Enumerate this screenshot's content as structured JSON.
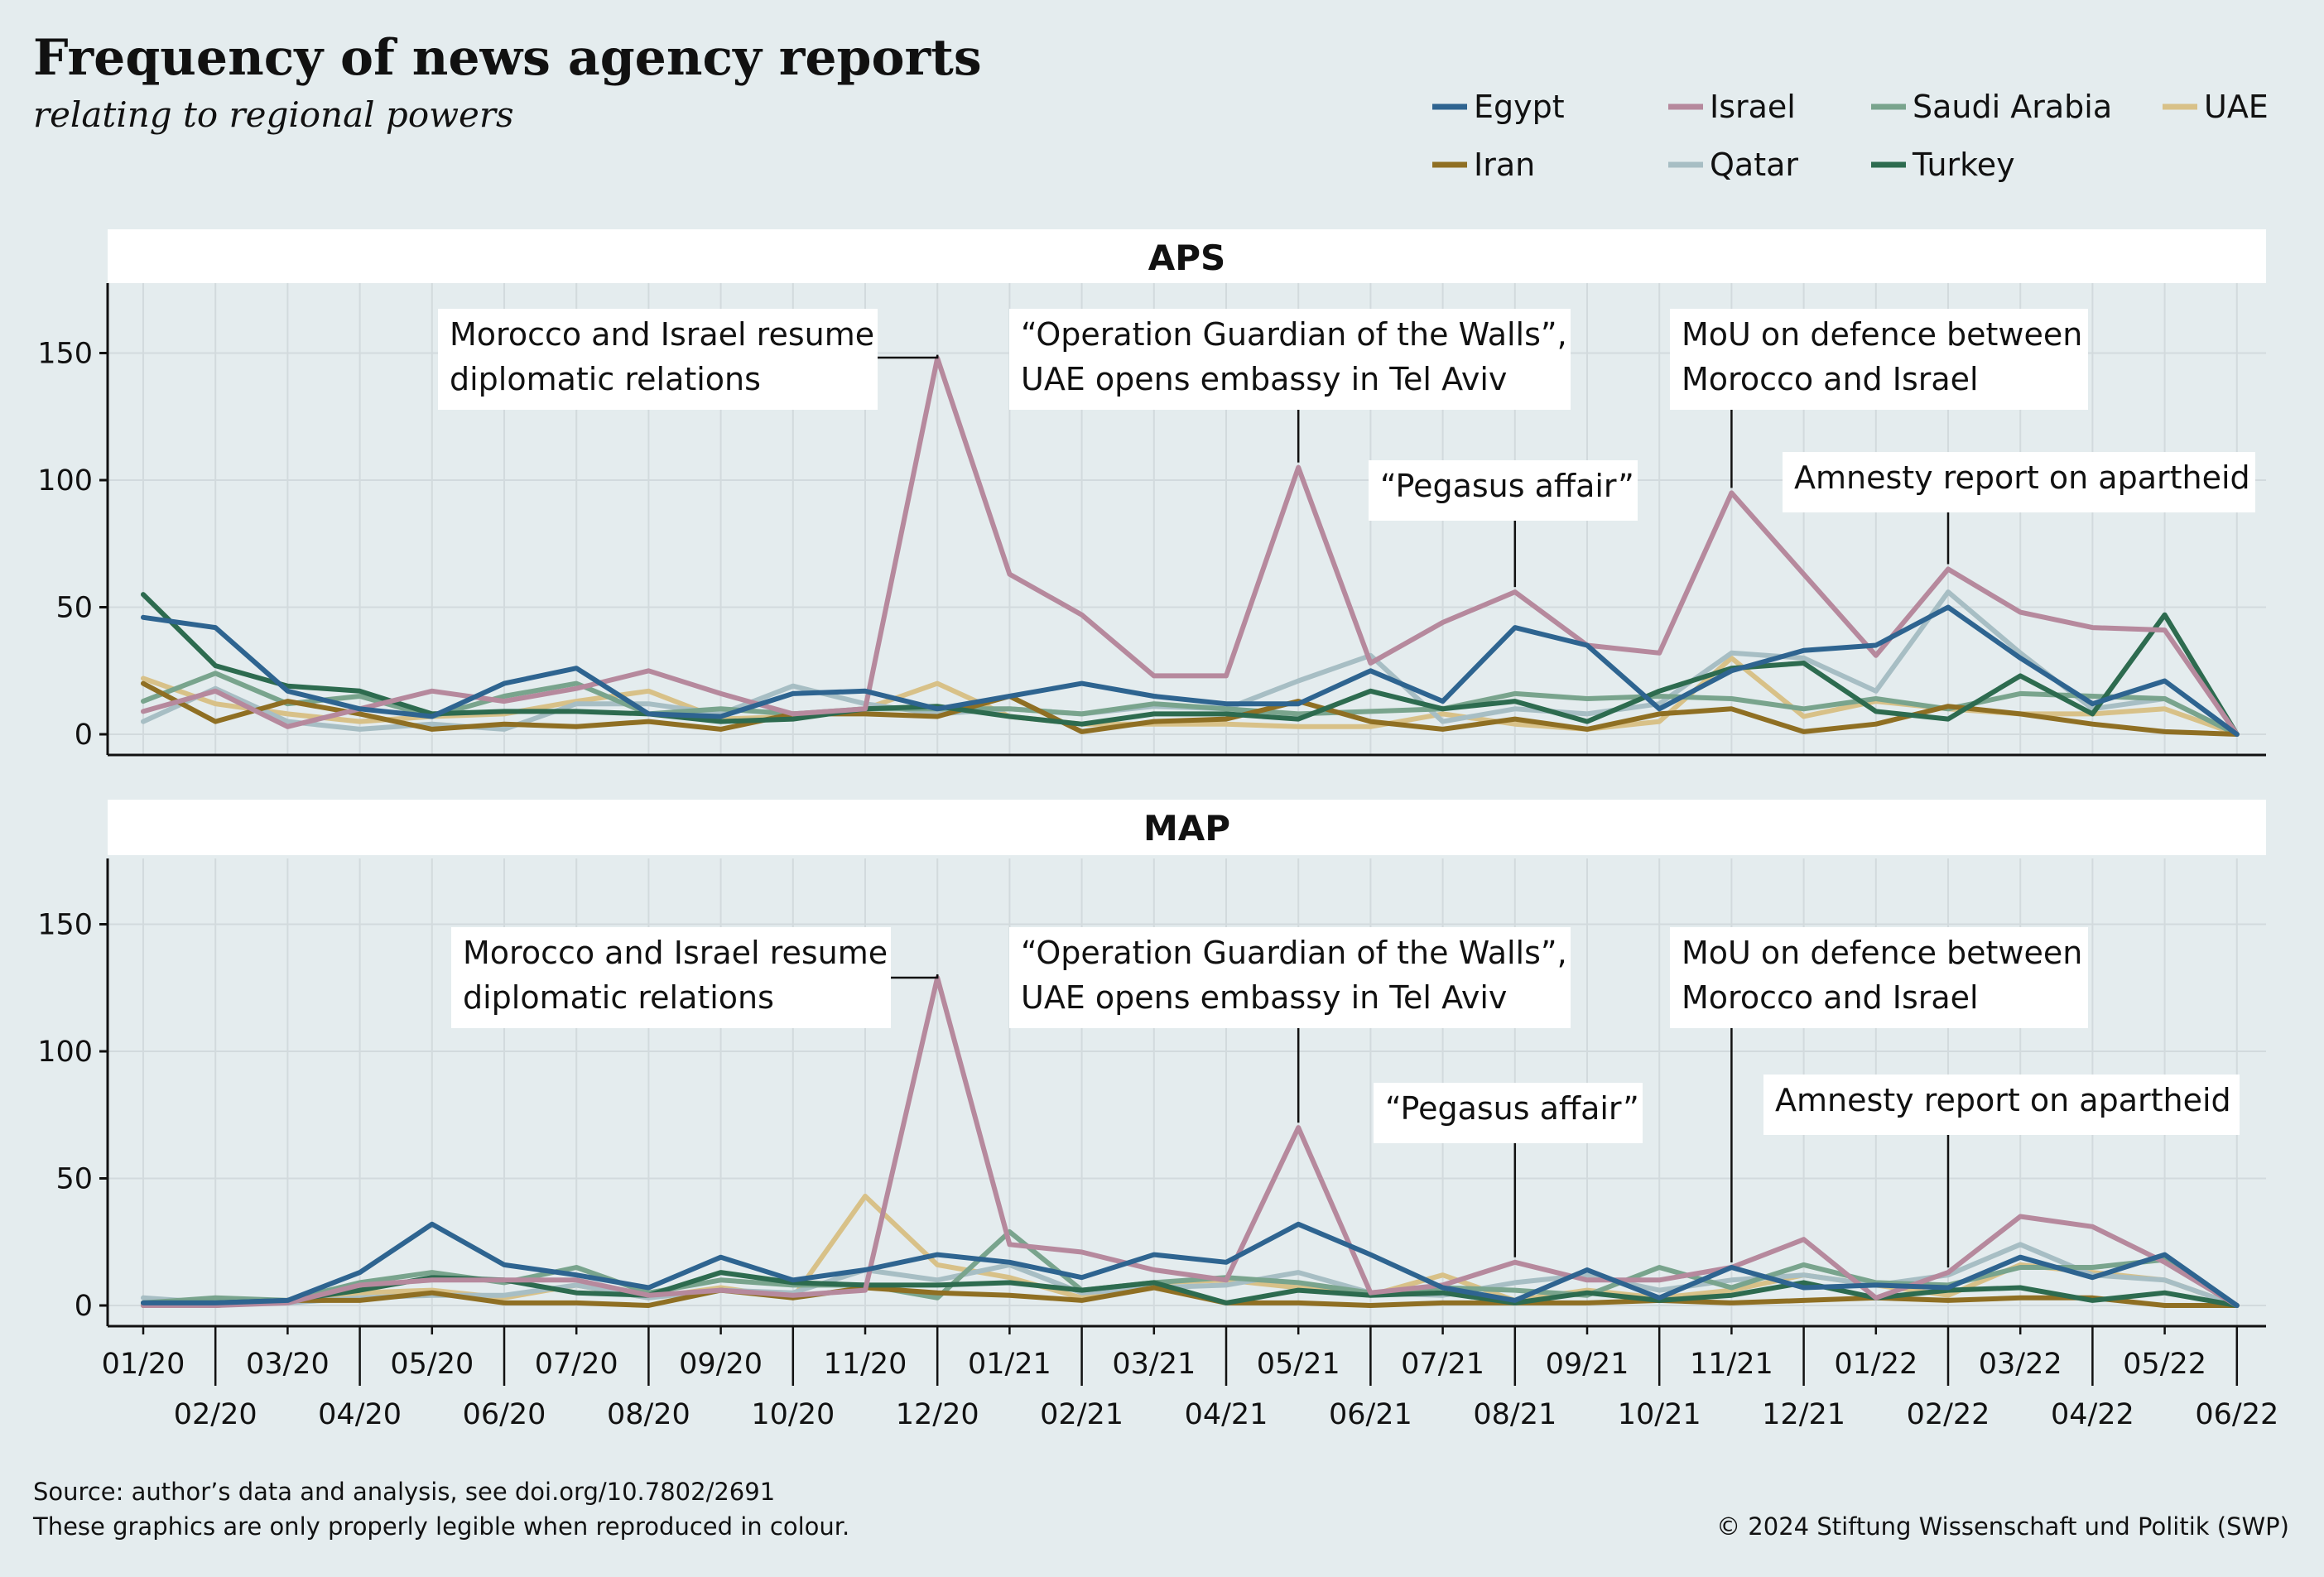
{
  "title": "Frequency of news agency reports",
  "subtitle": "relating to regional powers",
  "footer": {
    "source": "Source: author’s data and analysis, see doi.org/10.7802/2691",
    "legibility_note": "These graphics are only properly legible when reproduced in colour.",
    "copyright": "© 2024 Stiftung Wissenschaft und Politik (SWP)"
  },
  "chart_data": [
    {
      "type": "line",
      "title": "APS",
      "categories": [
        "01/20",
        "02/20",
        "03/20",
        "04/20",
        "05/20",
        "06/20",
        "07/20",
        "08/20",
        "09/20",
        "10/20",
        "11/20",
        "12/20",
        "01/21",
        "02/21",
        "03/21",
        "04/21",
        "05/21",
        "06/21",
        "07/21",
        "08/21",
        "09/21",
        "10/21",
        "11/21",
        "12/21",
        "01/22",
        "02/22",
        "03/22",
        "04/22",
        "05/22",
        "06/22"
      ],
      "ylim": [
        0,
        175
      ],
      "yticks": [
        0,
        50,
        100,
        150
      ],
      "grid": true,
      "legend_position": "top-right",
      "series": [
        {
          "name": "Egypt",
          "color": "#2e6490",
          "values": [
            46,
            42,
            17,
            10,
            7,
            20,
            26,
            8,
            7,
            16,
            17,
            10,
            15,
            20,
            15,
            12,
            12,
            25,
            13,
            42,
            35,
            10,
            25,
            33,
            35,
            50,
            30,
            12,
            21,
            0
          ]
        },
        {
          "name": "Iran",
          "color": "#8f6f23",
          "values": [
            20,
            5,
            13,
            8,
            2,
            4,
            3,
            5,
            2,
            8,
            8,
            7,
            15,
            1,
            5,
            6,
            13,
            5,
            2,
            6,
            2,
            8,
            10,
            1,
            4,
            11,
            8,
            4,
            1,
            0
          ]
        },
        {
          "name": "Israel",
          "color": "#b6899d",
          "values": [
            9,
            17,
            3,
            10,
            17,
            13,
            18,
            25,
            16,
            8,
            10,
            148,
            63,
            47,
            23,
            23,
            105,
            28,
            44,
            56,
            35,
            32,
            95,
            63,
            31,
            65,
            48,
            42,
            41,
            0
          ]
        },
        {
          "name": "Qatar",
          "color": "#a7bec4",
          "values": [
            5,
            18,
            5,
            2,
            4,
            2,
            12,
            12,
            8,
            19,
            12,
            8,
            10,
            8,
            11,
            10,
            21,
            31,
            5,
            10,
            8,
            12,
            32,
            30,
            17,
            56,
            32,
            10,
            14,
            0
          ]
        },
        {
          "name": "Saudi Arabia",
          "color": "#79a48d",
          "values": [
            13,
            24,
            12,
            15,
            7,
            15,
            20,
            8,
            10,
            8,
            10,
            10,
            10,
            8,
            12,
            10,
            8,
            9,
            10,
            16,
            14,
            15,
            14,
            10,
            14,
            10,
            16,
            15,
            14,
            0
          ]
        },
        {
          "name": "Turkey",
          "color": "#2d6b4f",
          "values": [
            55,
            27,
            19,
            17,
            8,
            9,
            9,
            8,
            5,
            6,
            10,
            11,
            7,
            4,
            8,
            8,
            6,
            17,
            10,
            13,
            5,
            17,
            26,
            28,
            9,
            6,
            23,
            8,
            47,
            0
          ]
        },
        {
          "name": "UAE",
          "color": "#d8c188",
          "values": [
            22,
            12,
            8,
            5,
            7,
            8,
            13,
            17,
            6,
            7,
            10,
            20,
            7,
            4,
            4,
            4,
            3,
            3,
            8,
            4,
            2,
            5,
            30,
            7,
            13,
            10,
            8,
            8,
            10,
            0
          ]
        }
      ],
      "annotations": [
        {
          "lines": [
            "Morocco and Israel resume",
            "diplomatic relations"
          ],
          "x": "12/20",
          "y": 148
        },
        {
          "lines": [
            "“Operation Guardian of the Walls”,",
            "UAE opens embassy in Tel Aviv"
          ],
          "x": "05/21",
          "y": 105
        },
        {
          "lines": [
            "“Pegasus affair”"
          ],
          "x": "08/21",
          "y": 56
        },
        {
          "lines": [
            "MoU on defence between",
            "Morocco and Israel"
          ],
          "x": "11/21",
          "y": 95
        },
        {
          "lines": [
            "Amnesty report on apartheid"
          ],
          "x": "02/22",
          "y": 65
        }
      ]
    },
    {
      "type": "line",
      "title": "MAP",
      "categories": [
        "01/20",
        "02/20",
        "03/20",
        "04/20",
        "05/20",
        "06/20",
        "07/20",
        "08/20",
        "09/20",
        "10/20",
        "11/20",
        "12/20",
        "01/21",
        "02/21",
        "03/21",
        "04/21",
        "05/21",
        "06/21",
        "07/21",
        "08/21",
        "09/21",
        "10/21",
        "11/21",
        "12/21",
        "01/22",
        "02/22",
        "03/22",
        "04/22",
        "05/22",
        "06/22"
      ],
      "ylim": [
        0,
        175
      ],
      "yticks": [
        0,
        50,
        100,
        150
      ],
      "grid": true,
      "series": [
        {
          "name": "Egypt",
          "color": "#2e6490",
          "values": [
            1,
            1,
            2,
            13,
            32,
            16,
            12,
            7,
            19,
            10,
            14,
            20,
            17,
            11,
            20,
            17,
            32,
            20,
            7,
            2,
            14,
            3,
            15,
            7,
            8,
            7,
            19,
            11,
            20,
            0
          ]
        },
        {
          "name": "Iran",
          "color": "#8f6f23",
          "values": [
            0,
            0,
            2,
            2,
            5,
            1,
            1,
            0,
            6,
            3,
            7,
            5,
            4,
            2,
            7,
            1,
            1,
            0,
            1,
            1,
            1,
            2,
            1,
            2,
            3,
            2,
            3,
            3,
            0,
            0
          ]
        },
        {
          "name": "Israel",
          "color": "#b6899d",
          "values": [
            0,
            0,
            1,
            8,
            10,
            10,
            10,
            4,
            6,
            4,
            6,
            129,
            24,
            21,
            14,
            10,
            70,
            5,
            8,
            17,
            10,
            10,
            15,
            26,
            3,
            13,
            35,
            31,
            17,
            0
          ]
        },
        {
          "name": "Qatar",
          "color": "#a7bec4",
          "values": [
            3,
            1,
            1,
            3,
            4,
            4,
            8,
            3,
            6,
            5,
            14,
            10,
            16,
            5,
            7,
            8,
            13,
            5,
            4,
            9,
            12,
            6,
            10,
            12,
            8,
            12,
            24,
            12,
            10,
            0
          ]
        },
        {
          "name": "Saudi Arabia",
          "color": "#79a48d",
          "values": [
            1,
            3,
            2,
            9,
            13,
            9,
            15,
            5,
            10,
            8,
            8,
            3,
            29,
            6,
            9,
            11,
            9,
            5,
            7,
            6,
            4,
            15,
            7,
            16,
            9,
            8,
            15,
            15,
            18,
            0
          ]
        },
        {
          "name": "Turkey",
          "color": "#2d6b4f",
          "values": [
            1,
            1,
            2,
            6,
            11,
            10,
            5,
            4,
            13,
            9,
            8,
            8,
            9,
            6,
            9,
            1,
            6,
            4,
            5,
            1,
            5,
            2,
            4,
            9,
            3,
            6,
            7,
            2,
            5,
            0
          ]
        },
        {
          "name": "UAE",
          "color": "#d8c188",
          "values": [
            1,
            1,
            2,
            5,
            6,
            3,
            8,
            3,
            7,
            3,
            43,
            16,
            11,
            3,
            9,
            10,
            7,
            4,
            12,
            2,
            6,
            3,
            6,
            12,
            8,
            4,
            16,
            13,
            10,
            0
          ]
        }
      ],
      "annotations": [
        {
          "lines": [
            "Morocco and Israel resume",
            "diplomatic relations"
          ],
          "x": "12/20",
          "y": 129
        },
        {
          "lines": [
            "“Operation Guardian of the Walls”,",
            "UAE opens embassy in Tel Aviv"
          ],
          "x": "05/21",
          "y": 70
        },
        {
          "lines": [
            "“Pegasus affair”"
          ],
          "x": "08/21",
          "y": 17
        },
        {
          "lines": [
            "MoU on defence between",
            "Morocco and Israel"
          ],
          "x": "11/21",
          "y": 15
        },
        {
          "lines": [
            "Amnesty report on apartheid"
          ],
          "x": "02/22",
          "y": 13
        }
      ]
    }
  ]
}
